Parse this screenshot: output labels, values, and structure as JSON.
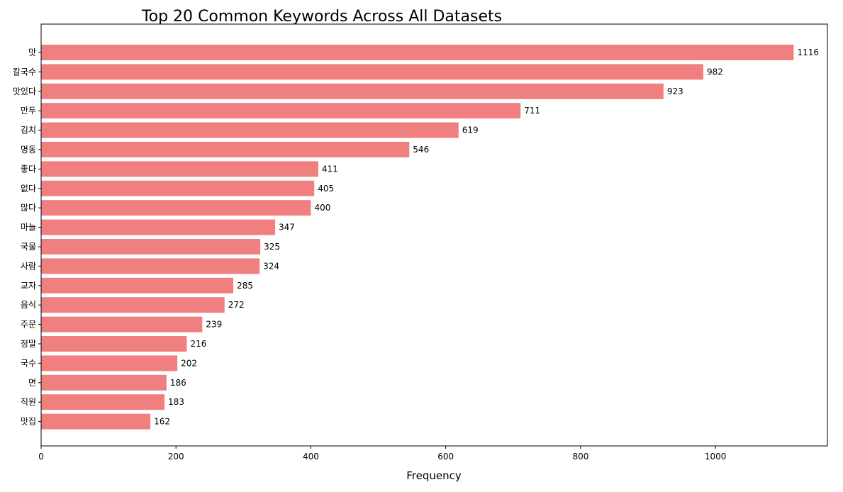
{
  "chart_data": {
    "type": "bar",
    "orientation": "horizontal",
    "title": "Top 20 Common Keywords Across All Datasets",
    "xlabel": "Frequency",
    "ylabel": "",
    "categories": [
      "맛",
      "칼국수",
      "맛있다",
      "만두",
      "김치",
      "명동",
      "좋다",
      "없다",
      "많다",
      "마늘",
      "국물",
      "사람",
      "교자",
      "음식",
      "주문",
      "정말",
      "국수",
      "면",
      "직원",
      "맛집"
    ],
    "values": [
      1116,
      982,
      923,
      711,
      619,
      546,
      411,
      405,
      400,
      347,
      325,
      324,
      285,
      272,
      239,
      216,
      202,
      186,
      183,
      162
    ],
    "xlim": [
      0,
      1166
    ],
    "xticks": [
      0,
      200,
      400,
      600,
      800,
      1000
    ],
    "bar_color": "#f08080",
    "grid": false,
    "legend": "none",
    "data_labels": true
  }
}
